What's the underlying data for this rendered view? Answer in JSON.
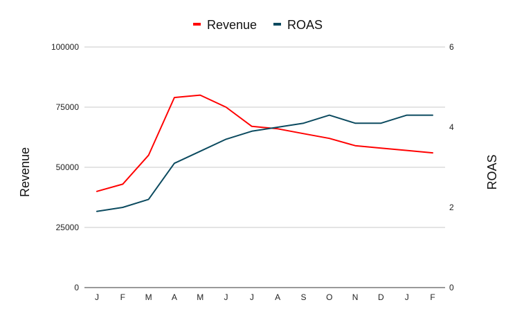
{
  "chart_data": {
    "type": "line",
    "categories": [
      "J",
      "F",
      "M",
      "A",
      "M",
      "J",
      "J",
      "A",
      "S",
      "O",
      "N",
      "D",
      "J",
      "F"
    ],
    "series": [
      {
        "name": "Revenue",
        "axis": "left",
        "color": "#ff0000",
        "values": [
          40000,
          43000,
          55000,
          79000,
          80000,
          75000,
          67000,
          66000,
          64000,
          62000,
          59000,
          58000,
          57000,
          56000
        ]
      },
      {
        "name": "ROAS",
        "axis": "right",
        "color": "#0b4a5f",
        "values": [
          1.9,
          2.0,
          2.2,
          3.1,
          3.4,
          3.7,
          3.9,
          4.0,
          4.1,
          4.3,
          4.1,
          4.1,
          4.3,
          4.3
        ]
      }
    ],
    "ylabel_left": "Revenue",
    "ylabel_right": "ROAS",
    "ylim_left": [
      0,
      100000
    ],
    "ylim_right": [
      0,
      6
    ],
    "yticks_left": [
      "0",
      "25000",
      "50000",
      "75000",
      "100000"
    ],
    "yticks_right": [
      "0",
      "2",
      "4",
      "6"
    ],
    "legend_position": "top-center",
    "grid": true
  }
}
